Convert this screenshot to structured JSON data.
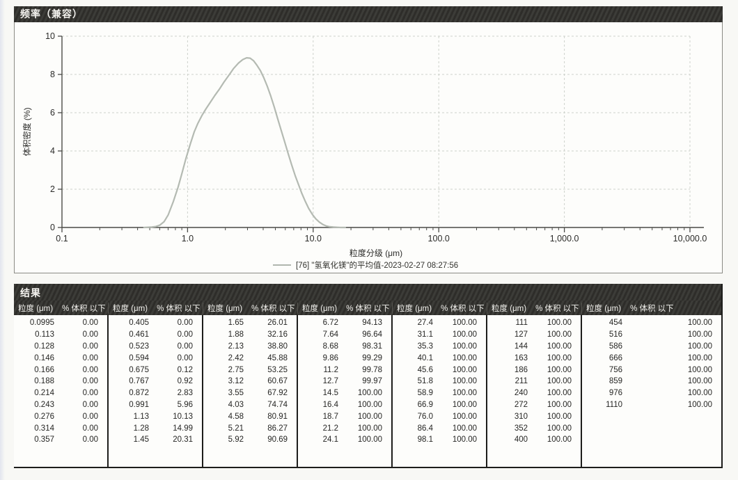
{
  "colors": {
    "header_bar": "#32312d",
    "curve": "#b4bab2",
    "grid": "#cdd1cb",
    "axis": "#4a4a46",
    "legend_dash": "#b0b6ae"
  },
  "chart_panel": {
    "title": "频率（兼容）"
  },
  "chart_data": {
    "type": "line",
    "title": "频率（兼容）",
    "xlabel": "粒度分级 (μm)",
    "ylabel": "体积密度 (%)",
    "x_scale": "log",
    "xlim": [
      0.1,
      10000
    ],
    "ylim": [
      0,
      10
    ],
    "y_ticks": [
      0,
      2,
      4,
      6,
      8,
      10
    ],
    "x_ticks": [
      0.1,
      1,
      10,
      100,
      1000,
      10000
    ],
    "x_tick_labels": [
      "0.1",
      "1.0",
      "10.0",
      "100.0",
      "1,000.0",
      "10,000.0"
    ],
    "grid": true,
    "legend_position": "bottom",
    "series": [
      {
        "name": "[76] \"氢氧化镁\"的平均值-2023-02-27 08:27:56",
        "color": "#b4bab2",
        "x": [
          0.45,
          0.52,
          0.56,
          0.6,
          0.65,
          0.7,
          0.77,
          0.84,
          0.9,
          0.97,
          1.05,
          1.13,
          1.21,
          1.3,
          1.4,
          1.52,
          1.65,
          1.8,
          1.95,
          2.13,
          2.32,
          2.55,
          2.75,
          2.95,
          3.15,
          3.35,
          3.55,
          3.8,
          4.03,
          4.3,
          4.58,
          4.9,
          5.21,
          5.55,
          5.92,
          6.3,
          6.72,
          7.2,
          7.64,
          8.1,
          8.68,
          9.2,
          9.86,
          10.5,
          11.2,
          12.0,
          12.7,
          13.5,
          14.5,
          15.5,
          16.5,
          18.0
        ],
        "y": [
          0,
          0.02,
          0.05,
          0.12,
          0.3,
          0.65,
          1.35,
          2.1,
          2.8,
          3.6,
          4.35,
          5.0,
          5.45,
          5.85,
          6.2,
          6.55,
          6.9,
          7.25,
          7.6,
          7.95,
          8.3,
          8.6,
          8.78,
          8.87,
          8.85,
          8.72,
          8.5,
          8.2,
          7.85,
          7.4,
          6.9,
          6.3,
          5.7,
          5.1,
          4.5,
          3.9,
          3.3,
          2.7,
          2.25,
          1.8,
          1.35,
          1.0,
          0.68,
          0.45,
          0.28,
          0.15,
          0.08,
          0.04,
          0.02,
          0.01,
          0.0,
          0.0
        ]
      }
    ]
  },
  "results_table": {
    "title": "结果",
    "size_header": "粒度 (μm)",
    "pct_header": "% 体积 以下",
    "groups": [
      {
        "rows": [
          [
            "0.0995",
            "0.00"
          ],
          [
            "0.113",
            "0.00"
          ],
          [
            "0.128",
            "0.00"
          ],
          [
            "0.146",
            "0.00"
          ],
          [
            "0.166",
            "0.00"
          ],
          [
            "0.188",
            "0.00"
          ],
          [
            "0.214",
            "0.00"
          ],
          [
            "0.243",
            "0.00"
          ],
          [
            "0.276",
            "0.00"
          ],
          [
            "0.314",
            "0.00"
          ],
          [
            "0.357",
            "0.00"
          ]
        ]
      },
      {
        "rows": [
          [
            "0.405",
            "0.00"
          ],
          [
            "0.461",
            "0.00"
          ],
          [
            "0.523",
            "0.00"
          ],
          [
            "0.594",
            "0.00"
          ],
          [
            "0.675",
            "0.12"
          ],
          [
            "0.767",
            "0.92"
          ],
          [
            "0.872",
            "2.83"
          ],
          [
            "0.991",
            "5.96"
          ],
          [
            "1.13",
            "10.13"
          ],
          [
            "1.28",
            "14.99"
          ],
          [
            "1.45",
            "20.31"
          ]
        ]
      },
      {
        "rows": [
          [
            "1.65",
            "26.01"
          ],
          [
            "1.88",
            "32.16"
          ],
          [
            "2.13",
            "38.80"
          ],
          [
            "2.42",
            "45.88"
          ],
          [
            "2.75",
            "53.25"
          ],
          [
            "3.12",
            "60.67"
          ],
          [
            "3.55",
            "67.92"
          ],
          [
            "4.03",
            "74.74"
          ],
          [
            "4.58",
            "80.91"
          ],
          [
            "5.21",
            "86.27"
          ],
          [
            "5.92",
            "90.69"
          ]
        ]
      },
      {
        "rows": [
          [
            "6.72",
            "94.13"
          ],
          [
            "7.64",
            "96.64"
          ],
          [
            "8.68",
            "98.31"
          ],
          [
            "9.86",
            "99.29"
          ],
          [
            "11.2",
            "99.78"
          ],
          [
            "12.7",
            "99.97"
          ],
          [
            "14.5",
            "100.00"
          ],
          [
            "16.4",
            "100.00"
          ],
          [
            "18.7",
            "100.00"
          ],
          [
            "21.2",
            "100.00"
          ],
          [
            "24.1",
            "100.00"
          ]
        ]
      },
      {
        "rows": [
          [
            "27.4",
            "100.00"
          ],
          [
            "31.1",
            "100.00"
          ],
          [
            "35.3",
            "100.00"
          ],
          [
            "40.1",
            "100.00"
          ],
          [
            "45.6",
            "100.00"
          ],
          [
            "51.8",
            "100.00"
          ],
          [
            "58.9",
            "100.00"
          ],
          [
            "66.9",
            "100.00"
          ],
          [
            "76.0",
            "100.00"
          ],
          [
            "86.4",
            "100.00"
          ],
          [
            "98.1",
            "100.00"
          ]
        ]
      },
      {
        "rows": [
          [
            "111",
            "100.00"
          ],
          [
            "127",
            "100.00"
          ],
          [
            "144",
            "100.00"
          ],
          [
            "163",
            "100.00"
          ],
          [
            "186",
            "100.00"
          ],
          [
            "211",
            "100.00"
          ],
          [
            "240",
            "100.00"
          ],
          [
            "272",
            "100.00"
          ],
          [
            "310",
            "100.00"
          ],
          [
            "352",
            "100.00"
          ],
          [
            "400",
            "100.00"
          ]
        ]
      },
      {
        "rows": [
          [
            "454",
            "100.00"
          ],
          [
            "516",
            "100.00"
          ],
          [
            "586",
            "100.00"
          ],
          [
            "666",
            "100.00"
          ],
          [
            "756",
            "100.00"
          ],
          [
            "859",
            "100.00"
          ],
          [
            "976",
            "100.00"
          ],
          [
            "1110",
            "100.00"
          ]
        ]
      }
    ]
  }
}
